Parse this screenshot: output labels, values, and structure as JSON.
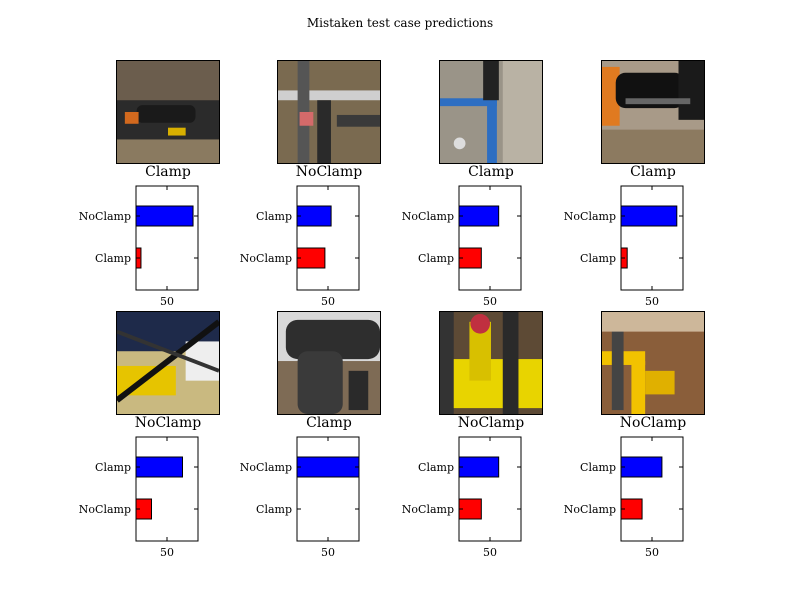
{
  "title": "Mistaken test case predictions",
  "colors": {
    "top_bar": "#0000ff",
    "bottom_bar": "#ff0000",
    "axes": "#000000"
  },
  "chart_data": [
    {
      "type": "bar",
      "orientation": "horizontal",
      "label": "Clamp",
      "categories": [
        "NoClamp",
        "Clamp"
      ],
      "values": [
        92,
        8
      ],
      "xtick": 50
    },
    {
      "type": "bar",
      "orientation": "horizontal",
      "label": "NoClamp",
      "categories": [
        "Clamp",
        "NoClamp"
      ],
      "values": [
        55,
        45
      ],
      "xtick": 50
    },
    {
      "type": "bar",
      "orientation": "horizontal",
      "label": "Clamp",
      "categories": [
        "NoClamp",
        "Clamp"
      ],
      "values": [
        64,
        36
      ],
      "xtick": 50
    },
    {
      "type": "bar",
      "orientation": "horizontal",
      "label": "Clamp",
      "categories": [
        "NoClamp",
        "Clamp"
      ],
      "values": [
        90,
        10
      ],
      "xtick": 50
    },
    {
      "type": "bar",
      "orientation": "horizontal",
      "label": "NoClamp",
      "categories": [
        "Clamp",
        "NoClamp"
      ],
      "values": [
        75,
        25
      ],
      "xtick": 50
    },
    {
      "type": "bar",
      "orientation": "horizontal",
      "label": "Clamp",
      "categories": [
        "NoClamp",
        "Clamp"
      ],
      "values": [
        100,
        0
      ],
      "xtick": 50
    },
    {
      "type": "bar",
      "orientation": "horizontal",
      "label": "NoClamp",
      "categories": [
        "Clamp",
        "NoClamp"
      ],
      "values": [
        64,
        36
      ],
      "xtick": 50
    },
    {
      "type": "bar",
      "orientation": "horizontal",
      "label": "NoClamp",
      "categories": [
        "Clamp",
        "NoClamp"
      ],
      "values": [
        66,
        34
      ],
      "xtick": 50
    }
  ]
}
